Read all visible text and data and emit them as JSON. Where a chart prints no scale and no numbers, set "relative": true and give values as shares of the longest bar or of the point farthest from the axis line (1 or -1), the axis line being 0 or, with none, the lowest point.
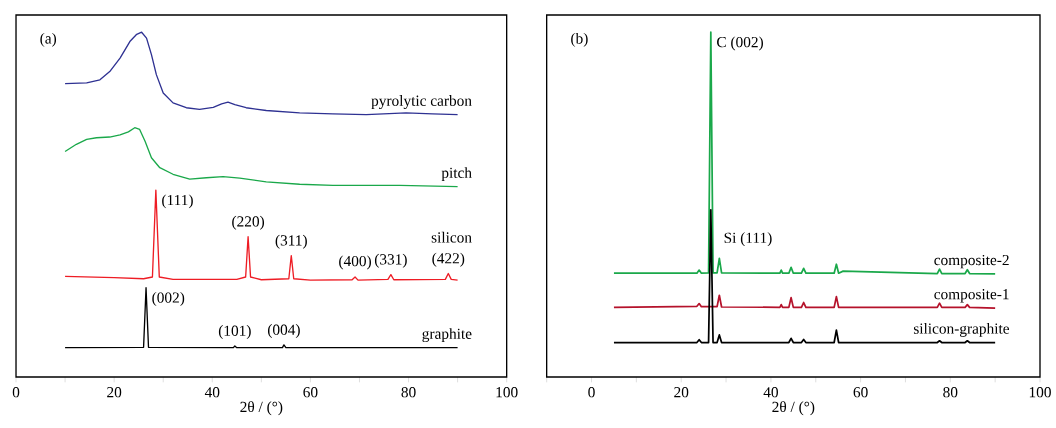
{
  "chart_data": [
    {
      "type": "line",
      "relative": true,
      "xlabel": "2θ / (°)",
      "xlim": [
        0,
        100
      ],
      "tick_labels": "x",
      "xticks": [
        0,
        {
          "value": 10,
          "label": null
        },
        20,
        {
          "value": 30,
          "label": null
        },
        40,
        {
          "value": 50,
          "label": null
        },
        60,
        {
          "value": 70,
          "label": null
        },
        80,
        {
          "value": 90,
          "label": null
        },
        100
      ],
      "annotations": [
        "(a)",
        {
          "text": "(111)",
          "x": 28.5,
          "y": 0.542
        },
        {
          "text": "(220)",
          "x": 47.3,
          "y": 0.407
        },
        {
          "text": "(311)",
          "x": 56.1,
          "y": 0.352
        },
        {
          "text": "(400)",
          "x": 69.1,
          "y": 0.292
        },
        {
          "text": "(331)",
          "x": 76.4,
          "y": 0.297
        },
        {
          "text": "(422)",
          "x": 88.1,
          "y": 0.3
        },
        {
          "text": "(002)",
          "x": 26.5,
          "y": 0.259
        },
        {
          "text": "(101)",
          "x": 44.6,
          "y": 0.09
        },
        {
          "text": "(004)",
          "x": 54.6,
          "y": 0.093
        }
      ],
      "series": [
        {
          "name": "pyrolytic carbon",
          "color": "#2e3192",
          "x": [
            10,
            14.4,
            17.1,
            19.1,
            21.2,
            23.2,
            24.6,
            25.6,
            26.6,
            27.6,
            28.6,
            30.0,
            32.0,
            34.7,
            37.4,
            40.2,
            41.9,
            43.2,
            44.6,
            46.9,
            51.0,
            57.8,
            64.6,
            71.4,
            79.5,
            84.9,
            90
          ],
          "values": [
            0.851,
            0.853,
            0.862,
            0.886,
            0.925,
            0.973,
            0.994,
            1,
            0.983,
            0.935,
            0.877,
            0.824,
            0.795,
            0.781,
            0.776,
            0.782,
            0.792,
            0.797,
            0.79,
            0.781,
            0.773,
            0.766,
            0.763,
            0.761,
            0.766,
            0.763,
            0.761
          ]
        },
        {
          "name": "pitch",
          "color": "#1aa84a",
          "x": [
            10,
            12.3,
            14.4,
            16.4,
            19.1,
            21.2,
            22.9,
            24.2,
            25.2,
            26.3,
            27.6,
            29.3,
            32.0,
            35.4,
            38.8,
            42.2,
            45.6,
            51.0,
            57.8,
            64.6,
            78.2,
            90
          ],
          "values": [
            0.654,
            0.675,
            0.689,
            0.694,
            0.696,
            0.702,
            0.711,
            0.723,
            0.718,
            0.684,
            0.636,
            0.607,
            0.588,
            0.574,
            0.578,
            0.581,
            0.577,
            0.566,
            0.559,
            0.556,
            0.556,
            0.552
          ]
        },
        {
          "name": "silicon",
          "color": "#ee1c24",
          "x": [
            10,
            20,
            26,
            27.8,
            28.5,
            29.2,
            32,
            45,
            46.8,
            47.3,
            47.8,
            50,
            55.6,
            56.1,
            56.6,
            60,
            68.5,
            69.1,
            69.7,
            75.8,
            76.4,
            77,
            87.5,
            88.1,
            88.7,
            90
          ],
          "values": [
            0.292,
            0.288,
            0.285,
            0.29,
            0.542,
            0.29,
            0.283,
            0.283,
            0.29,
            0.407,
            0.29,
            0.282,
            0.285,
            0.352,
            0.285,
            0.281,
            0.282,
            0.29,
            0.281,
            0.283,
            0.297,
            0.282,
            0.283,
            0.3,
            0.283,
            0.281
          ]
        },
        {
          "name": "graphite",
          "color": "#000000",
          "x": [
            10,
            26,
            26.5,
            27,
            44.3,
            44.6,
            45,
            54.3,
            54.6,
            55,
            90
          ],
          "values": [
            0.085,
            0.086,
            0.259,
            0.086,
            0.085,
            0.09,
            0.085,
            0.085,
            0.093,
            0.085,
            0.085
          ]
        }
      ]
    },
    {
      "type": "line",
      "relative": true,
      "xlabel": "2θ / (°)",
      "xlim": [
        -10,
        100
      ],
      "tick_labels": "x",
      "xticks": [
        {
          "value": -10,
          "label": null
        },
        0,
        {
          "value": 10,
          "label": null
        },
        20,
        {
          "value": 30,
          "label": null
        },
        40,
        {
          "value": 50,
          "label": null
        },
        60,
        {
          "value": 70,
          "label": null
        },
        80,
        {
          "value": 90,
          "label": null
        },
        100
      ],
      "annotations": [
        "(b)",
        {
          "text": "C (002)",
          "x": 26.6,
          "y": 1
        },
        {
          "text": "Si (111)",
          "x": 28.5,
          "y": 0.344
        }
      ],
      "series": [
        {
          "name": "composite-2",
          "color": "#1aa84a",
          "x": [
            5,
            23.5,
            24,
            24.5,
            26.1,
            26.6,
            27.1,
            28,
            28.5,
            29,
            42,
            42.3,
            42.6,
            44,
            44.5,
            45,
            46.8,
            47.3,
            47.8,
            54.1,
            54.6,
            55.1,
            56.1,
            77.1,
            77.6,
            78.1,
            83.3,
            83.8,
            84.3,
            90
          ],
          "values": [
            0.301,
            0.301,
            0.31,
            0.301,
            0.302,
            1,
            0.302,
            0.302,
            0.344,
            0.302,
            0.301,
            0.31,
            0.301,
            0.301,
            0.318,
            0.301,
            0.301,
            0.315,
            0.301,
            0.301,
            0.327,
            0.301,
            0.307,
            0.3,
            0.313,
            0.3,
            0.3,
            0.311,
            0.3,
            0.299
          ]
        },
        {
          "name": "composite-1",
          "color": "#b5122b",
          "x": [
            5,
            23.5,
            24,
            24.5,
            26.1,
            26.6,
            27.1,
            28,
            28.5,
            29,
            42,
            42.3,
            42.6,
            44,
            44.5,
            45,
            46.8,
            47.3,
            47.8,
            54.1,
            54.6,
            55.1,
            77.1,
            77.6,
            78.1,
            83.3,
            83.8,
            84.3,
            90
          ],
          "values": [
            0.202,
            0.205,
            0.213,
            0.204,
            0.204,
            null,
            0.204,
            0.204,
            0.237,
            0.203,
            0.202,
            0.21,
            0.202,
            0.202,
            0.23,
            0.202,
            0.202,
            0.216,
            0.202,
            0.202,
            0.233,
            0.202,
            0.202,
            0.214,
            0.202,
            0.202,
            0.21,
            0.202,
            0.2
          ]
        },
        {
          "name": "silicon-graphite",
          "color": "#000000",
          "x": [
            5,
            23.5,
            24,
            24.5,
            26.1,
            26.6,
            27.1,
            28,
            28.5,
            29,
            44,
            44.5,
            45,
            46.8,
            47.3,
            47.8,
            54.1,
            54.6,
            55.1,
            77.1,
            77.6,
            78.1,
            83.3,
            83.8,
            84.3,
            90
          ],
          "values": [
            0.1,
            0.1,
            0.108,
            0.1,
            0.1,
            0.485,
            0.1,
            0.1,
            0.122,
            0.1,
            0.1,
            0.112,
            0.1,
            0.1,
            0.109,
            0.1,
            0.1,
            0.136,
            0.1,
            0.1,
            0.105,
            0.1,
            0.1,
            0.105,
            0.1,
            0.1
          ]
        }
      ]
    }
  ]
}
